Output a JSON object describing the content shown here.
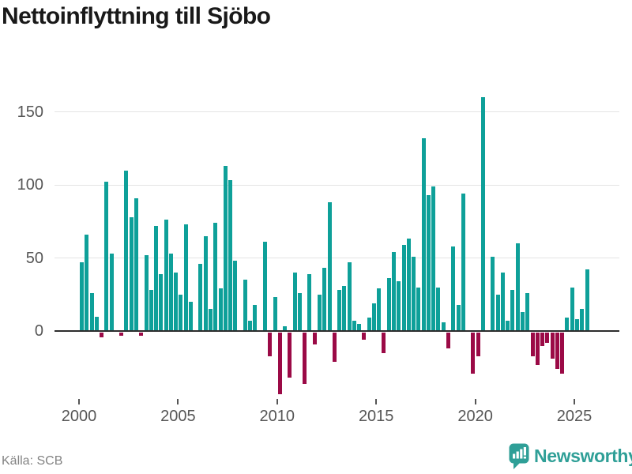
{
  "chart": {
    "title": "Nettoinflyttning till Sjöbo",
    "source": "Källa: SCB",
    "brand": "Newsworthy"
  },
  "colors": {
    "positive_bar": "#0ea099",
    "negative_bar": "#9b0a46",
    "axis_text": "#565656",
    "gridline": "#e4e4e4",
    "axis_line": "#2d2d2d",
    "title_text": "#191919",
    "source_text": "#838383",
    "brand_teal": "#2f9f97"
  },
  "chart_data": {
    "type": "bar",
    "title": "Nettoinflyttning till Sjöbo",
    "xlabel": "",
    "ylabel": "",
    "frequency": "quarterly",
    "x_start": "2000-Q1",
    "x_end": "2025-Q3",
    "values": [
      47,
      66,
      26,
      10,
      -3,
      102,
      53,
      0,
      -2,
      110,
      78,
      91,
      -2,
      52,
      28,
      72,
      39,
      76,
      53,
      40,
      25,
      73,
      20,
      0,
      46,
      65,
      15,
      74,
      29,
      113,
      103,
      48,
      0,
      35,
      7,
      18,
      0,
      61,
      -16,
      23,
      -42,
      3,
      -31,
      40,
      26,
      -35,
      39,
      -8,
      25,
      43,
      88,
      -20,
      28,
      31,
      47,
      7,
      5,
      -5,
      9,
      19,
      29,
      -14,
      36,
      54,
      34,
      59,
      63,
      51,
      30,
      132,
      93,
      99,
      30,
      6,
      -11,
      58,
      18,
      94,
      0,
      -28,
      -16,
      160,
      0,
      51,
      25,
      40,
      7,
      28,
      60,
      13,
      26,
      -16,
      -22,
      -9,
      -7,
      -18,
      -25,
      -28,
      9,
      30,
      8,
      15,
      42
    ],
    "x_tick_labels": [
      "2000",
      "2005",
      "2010",
      "2015",
      "2020",
      "2025"
    ],
    "x_tick_years": [
      2000,
      2005,
      2010,
      2015,
      2020,
      2025
    ],
    "y_ticks": [
      0,
      50,
      100,
      150
    ],
    "ylim": [
      -50,
      170
    ],
    "grid": "horizontal",
    "legend": "none",
    "positive_color": "#0ea099",
    "negative_color": "#9b0a46"
  }
}
